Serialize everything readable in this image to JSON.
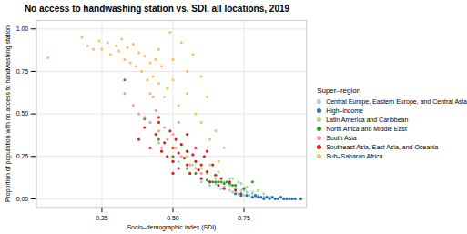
{
  "chart_data": {
    "type": "scatter",
    "title": "No access to handwashing station vs. SDI, all locations, 2019",
    "x_label": "Socio–demographic index (SDI)",
    "y_label": "Proportion of population with no access to handwashing station",
    "legend_title": "Super–region",
    "legend": "right",
    "grid": true,
    "xlim": [
      0.02,
      0.97
    ],
    "ylim": [
      -0.05,
      1.05
    ],
    "xticks": [
      0.25,
      {
        "value": 0.5,
        "label": "0.50"
      },
      0.75
    ],
    "yticks": [
      {
        "value": 0,
        "label": "0.00"
      },
      0.25,
      {
        "value": 0.5,
        "label": "0.50"
      },
      0.75,
      {
        "value": 1,
        "label": "1.00"
      }
    ],
    "series": [
      {
        "name": "Central Europe, Eastern Europe, and Central Asia",
        "color": "#a6cee3",
        "x": [
          0.6,
          0.63,
          0.65,
          0.67,
          0.68,
          0.7,
          0.71,
          0.72,
          0.73,
          0.74,
          0.75,
          0.76,
          0.77,
          0.78,
          0.79,
          0.8,
          0.82,
          0.84,
          0.7,
          0.74
        ],
        "values": [
          0.1,
          0.08,
          0.09,
          0.06,
          0.07,
          0.05,
          0.04,
          0.06,
          0.03,
          0.05,
          0.02,
          0.04,
          0.02,
          0.03,
          0.01,
          0.02,
          0.01,
          0.01,
          0.12,
          0.09
        ]
      },
      {
        "name": "High–income",
        "color": "#1f78b4",
        "x": [
          0.72,
          0.74,
          0.76,
          0.78,
          0.79,
          0.8,
          0.81,
          0.82,
          0.83,
          0.84,
          0.85,
          0.86,
          0.87,
          0.88,
          0.89,
          0.9,
          0.91,
          0.92,
          0.93,
          0.95
        ],
        "values": [
          0.03,
          0.02,
          0.02,
          0.01,
          0.02,
          0.01,
          0.01,
          0.0,
          0.01,
          0.0,
          0.01,
          0.0,
          0.0,
          0.01,
          0.0,
          0.0,
          0.0,
          0.0,
          0.0,
          0.0
        ]
      },
      {
        "name": "Latin America and Caribbean",
        "color": "#b2df8a",
        "x": [
          0.45,
          0.5,
          0.52,
          0.55,
          0.57,
          0.6,
          0.62,
          0.63,
          0.65,
          0.66,
          0.68,
          0.7,
          0.71,
          0.72,
          0.73,
          0.75,
          0.76,
          0.78,
          0.8,
          0.82
        ],
        "values": [
          0.33,
          0.3,
          0.22,
          0.25,
          0.2,
          0.18,
          0.15,
          0.2,
          0.12,
          0.16,
          0.1,
          0.08,
          0.12,
          0.06,
          0.1,
          0.05,
          0.07,
          0.04,
          0.05,
          0.03
        ]
      },
      {
        "name": "North Africa and Middle East",
        "color": "#33a02c",
        "x": [
          0.33,
          0.4,
          0.45,
          0.5,
          0.55,
          0.58,
          0.6,
          0.62,
          0.63,
          0.64,
          0.65,
          0.66,
          0.67,
          0.68,
          0.69,
          0.7,
          0.71,
          0.72,
          0.75,
          0.78
        ],
        "values": [
          0.7,
          0.47,
          0.35,
          0.25,
          0.18,
          0.15,
          0.12,
          0.11,
          0.1,
          0.1,
          0.1,
          0.1,
          0.1,
          0.09,
          0.1,
          0.09,
          0.08,
          0.08,
          0.06,
          0.1
        ]
      },
      {
        "name": "South Asia",
        "color": "#fb9a99",
        "x": [
          0.33,
          0.36,
          0.38,
          0.4,
          0.42,
          0.44,
          0.45,
          0.47,
          0.48,
          0.5,
          0.51,
          0.52,
          0.53,
          0.55,
          0.56,
          0.58,
          0.6,
          0.43,
          0.46,
          0.5
        ],
        "values": [
          0.62,
          0.55,
          0.5,
          0.48,
          0.45,
          0.52,
          0.4,
          0.42,
          0.35,
          0.38,
          0.3,
          0.45,
          0.25,
          0.28,
          0.2,
          0.18,
          0.15,
          0.6,
          0.3,
          0.22
        ]
      },
      {
        "name": "Southeast Asia, East Asia, and Oceania",
        "color": "#e31a1c",
        "x": [
          0.38,
          0.4,
          0.42,
          0.44,
          0.45,
          0.46,
          0.47,
          0.48,
          0.49,
          0.5,
          0.5,
          0.51,
          0.52,
          0.52,
          0.53,
          0.54,
          0.55,
          0.55,
          0.56,
          0.57,
          0.58,
          0.58,
          0.59,
          0.6,
          0.6,
          0.61,
          0.62,
          0.63,
          0.64,
          0.65,
          0.66,
          0.67,
          0.68,
          0.7,
          0.72,
          0.74,
          0.45,
          0.55,
          0.62,
          0.5
        ],
        "values": [
          0.35,
          0.42,
          0.3,
          0.38,
          0.45,
          0.28,
          0.33,
          0.25,
          0.4,
          0.3,
          0.22,
          0.35,
          0.27,
          0.18,
          0.32,
          0.24,
          0.28,
          0.2,
          0.15,
          0.26,
          0.22,
          0.3,
          0.17,
          0.2,
          0.12,
          0.25,
          0.16,
          0.1,
          0.2,
          0.14,
          0.08,
          0.12,
          0.06,
          0.1,
          0.05,
          0.03,
          0.48,
          0.38,
          0.28,
          0.15
        ]
      },
      {
        "name": "Sub–Saharan Africa",
        "color": "#fdbf6f",
        "x": [
          0.06,
          0.18,
          0.2,
          0.22,
          0.24,
          0.25,
          0.27,
          0.28,
          0.3,
          0.31,
          0.32,
          0.33,
          0.34,
          0.35,
          0.36,
          0.37,
          0.38,
          0.39,
          0.4,
          0.41,
          0.42,
          0.43,
          0.44,
          0.45,
          0.46,
          0.47,
          0.48,
          0.5,
          0.52,
          0.55,
          0.58,
          0.6,
          0.62,
          0.63,
          0.65,
          0.66,
          0.68,
          0.45,
          0.5,
          0.55,
          0.6,
          0.57,
          0.53,
          0.49,
          0.42
        ],
        "values": [
          0.83,
          0.95,
          0.9,
          0.88,
          0.93,
          0.88,
          0.92,
          0.85,
          0.9,
          0.87,
          0.94,
          0.82,
          0.89,
          0.8,
          0.91,
          0.78,
          0.86,
          0.75,
          0.84,
          0.7,
          0.8,
          0.72,
          0.82,
          0.68,
          0.78,
          0.6,
          0.65,
          0.7,
          0.55,
          0.62,
          0.5,
          0.45,
          0.6,
          0.35,
          0.4,
          0.22,
          0.3,
          0.88,
          0.82,
          0.75,
          0.72,
          0.85,
          0.92,
          0.98,
          0.62
        ]
      }
    ]
  }
}
